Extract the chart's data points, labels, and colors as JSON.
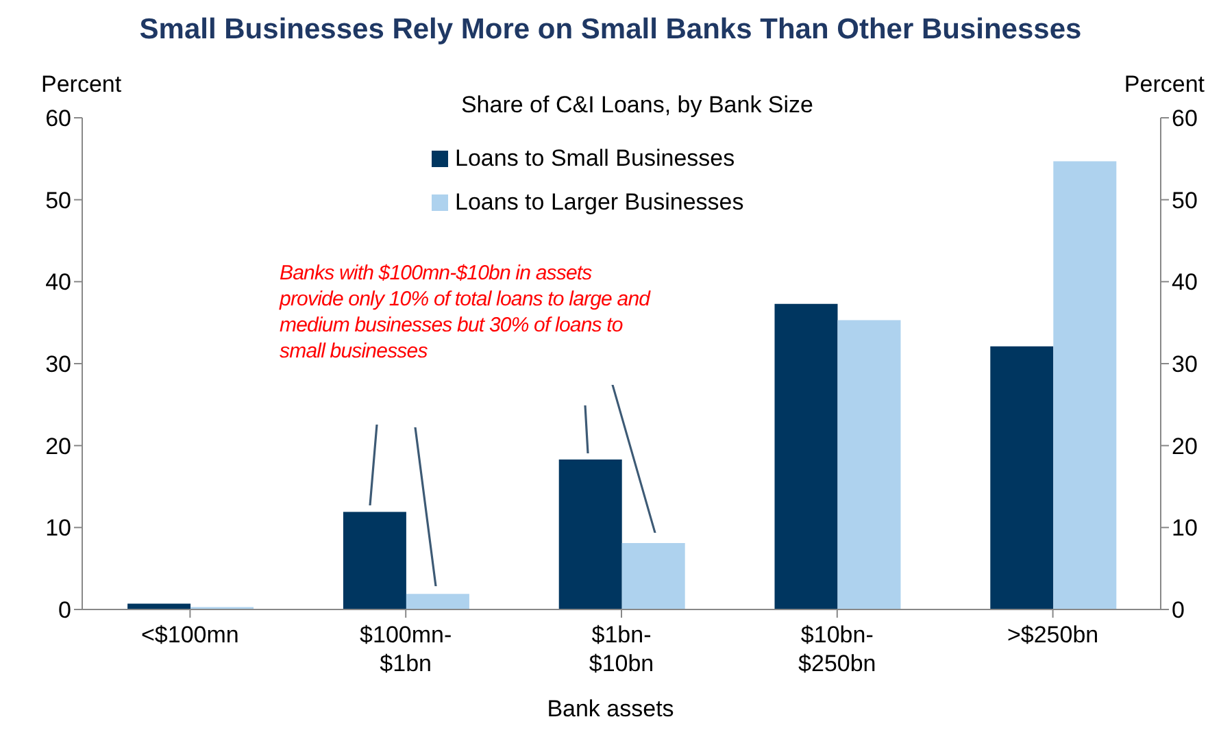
{
  "chart_data": {
    "type": "bar",
    "title": "Small Businesses Rely More on Small Banks Than Other Businesses",
    "subtitle": "Share of C&I Loans, by Bank Size",
    "xlabel": "Bank assets",
    "ylabel": "Percent",
    "y2label": "Percent",
    "categories": [
      "<$100mn",
      "$100mn-$1bn",
      "$1bn-$10bn",
      "$10bn-$250bn",
      ">$250bn"
    ],
    "series": [
      {
        "name": "Loans to Small Businesses",
        "color": "#003660",
        "values": [
          0.7,
          11.9,
          18.3,
          37.3,
          32.1
        ]
      },
      {
        "name": "Loans to Larger Businesses",
        "color": "#aed2ee",
        "values": [
          0.3,
          1.9,
          8.1,
          35.3,
          54.7
        ]
      }
    ],
    "ylim": [
      0,
      60
    ],
    "yticks": [
      0,
      10,
      20,
      30,
      40,
      50,
      60
    ],
    "y2lim": [
      0,
      60
    ],
    "y2ticks": [
      0,
      10,
      20,
      30,
      40,
      50,
      60
    ],
    "grid": false,
    "legend": "top",
    "annotations": [
      "Banks with $100mn-$10bn in assets provide only 10% of total loans to large and medium businesses but 30% of loans to small businesses"
    ]
  }
}
